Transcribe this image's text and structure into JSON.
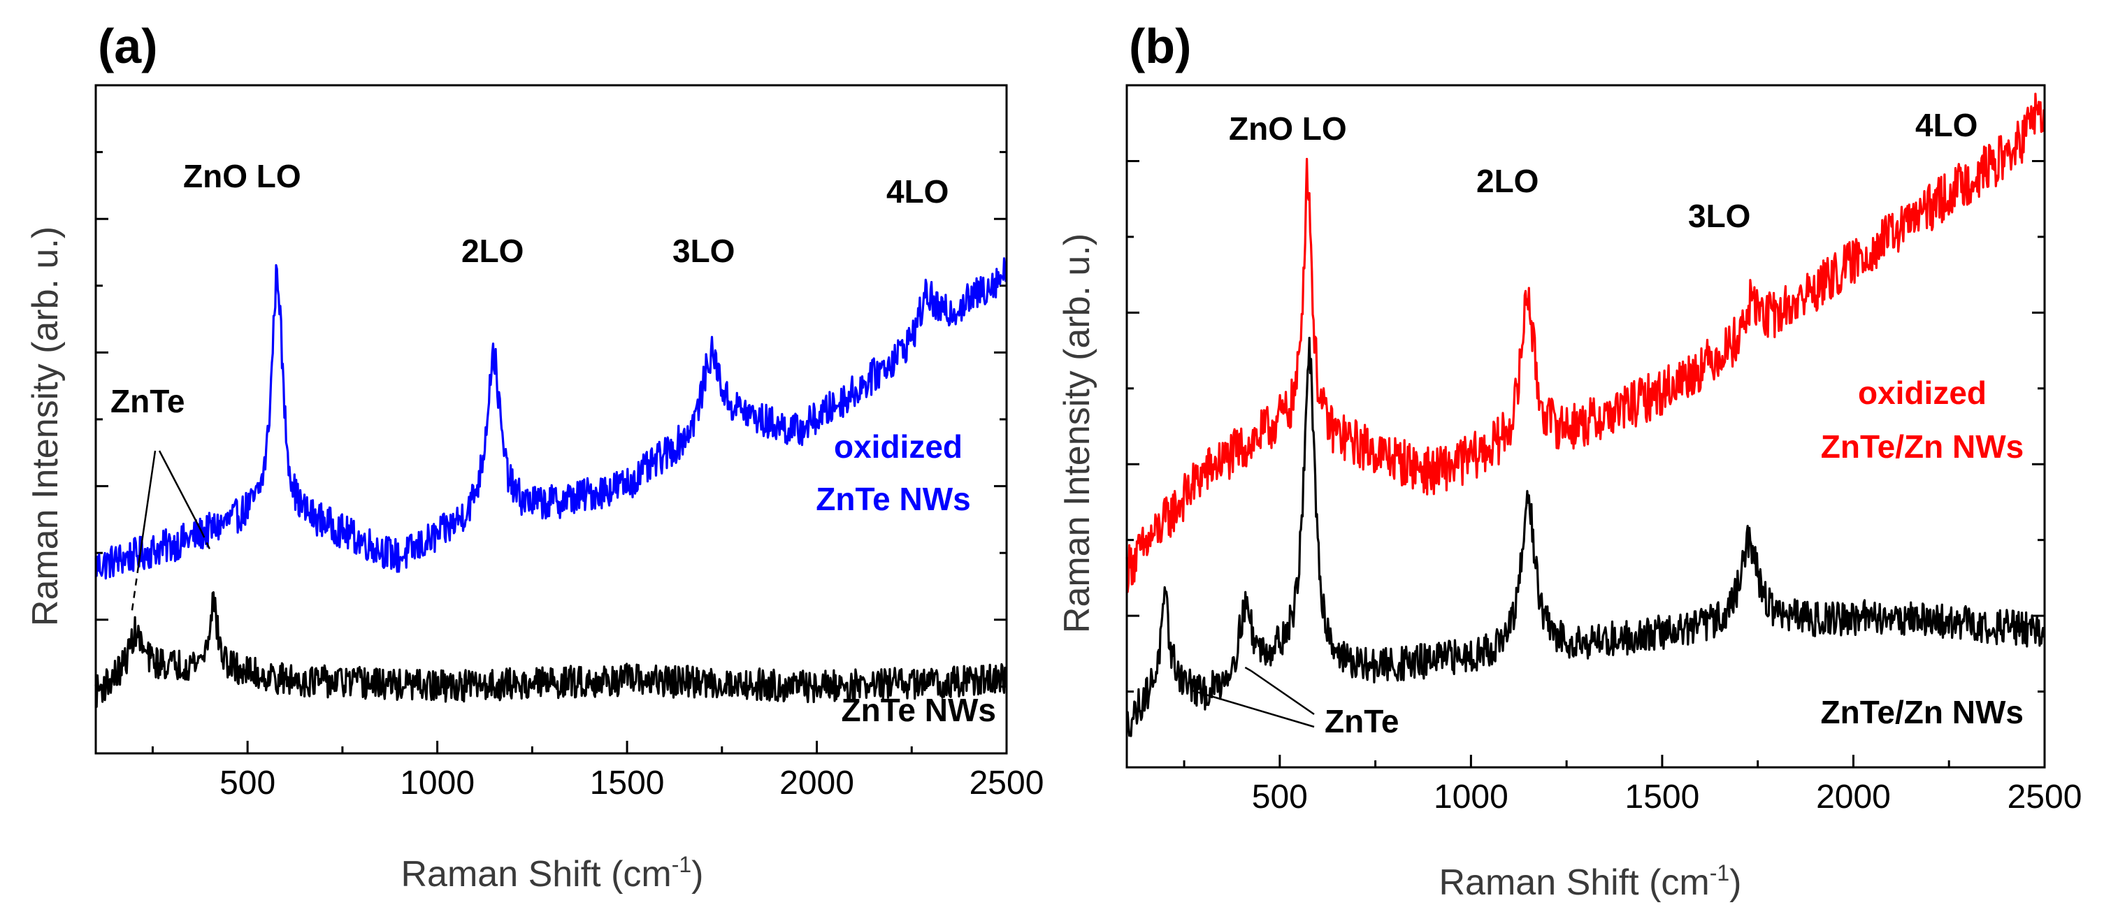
{
  "chart_data": [
    {
      "panel": "(a)",
      "type": "line",
      "xlabel": "Raman Shift (cm",
      "xlabel_sup": "-1",
      "xlabel_end": ")",
      "ylabel": "Raman Intensity (arb. u.)",
      "xlim": [
        100,
        2500
      ],
      "ylim": [
        0,
        1
      ],
      "xticks": [
        500,
        1000,
        1500,
        2000,
        2500
      ],
      "series": [
        {
          "name": "oxidized ZnTe NWs",
          "label_lines": [
            "oxidized",
            "ZnTe NWs"
          ],
          "color": "#0000ff",
          "baseline": [
            [
              100,
              0.28
            ],
            [
              300,
              0.31
            ],
            [
              500,
              0.35
            ],
            [
              700,
              0.34
            ],
            [
              900,
              0.29
            ],
            [
              1100,
              0.35
            ],
            [
              1300,
              0.37
            ],
            [
              1500,
              0.4
            ],
            [
              1600,
              0.44
            ],
            [
              1800,
              0.5
            ],
            [
              1950,
              0.48
            ],
            [
              2100,
              0.54
            ],
            [
              2300,
              0.63
            ],
            [
              2500,
              0.72
            ]
          ],
          "peaks": [
            {
              "x": 578,
              "height": 0.37,
              "width": 18
            },
            {
              "x": 1148,
              "height": 0.24,
              "width": 22
            },
            {
              "x": 1722,
              "height": 0.12,
              "width": 30
            },
            {
              "x": 2290,
              "height": 0.06,
              "width": 25
            }
          ],
          "noise": 0.026
        },
        {
          "name": "ZnTe NWs",
          "label_lines": [
            "ZnTe NWs"
          ],
          "color": "#000000",
          "baseline": [
            [
              100,
              0.09
            ],
            [
              200,
              0.13
            ],
            [
              400,
              0.13
            ],
            [
              600,
              0.11
            ],
            [
              1000,
              0.1
            ],
            [
              1500,
              0.11
            ],
            [
              2000,
              0.1
            ],
            [
              2500,
              0.11
            ]
          ],
          "peaks": [
            {
              "x": 205,
              "height": 0.05,
              "width": 20
            },
            {
              "x": 410,
              "height": 0.1,
              "width": 12
            }
          ],
          "noise": 0.024
        }
      ],
      "annotations": [
        {
          "text": "ZnO LO",
          "x": 450,
          "y": 0.9
        },
        {
          "text": "2LO",
          "x": 1150,
          "y": 0.78
        },
        {
          "text": "3LO",
          "x": 1722,
          "y": 0.76
        },
        {
          "text": "4LO",
          "x": 2295,
          "y": 0.87
        },
        {
          "text": "ZnTe",
          "x": 230,
          "y": 0.52
        }
      ]
    },
    {
      "panel": "(b)",
      "type": "line",
      "xlabel": "Raman Shift (cm",
      "xlabel_sup": "-1",
      "xlabel_end": ")",
      "ylabel": "Raman Intensity (arb. u.)",
      "xlim": [
        100,
        2500
      ],
      "ylim": [
        0,
        1
      ],
      "xticks": [
        500,
        1000,
        1500,
        2000,
        2500
      ],
      "series": [
        {
          "name": "oxidized ZnTe/Zn NWs",
          "label_lines": [
            "oxidized",
            "ZnTe/Zn NWs"
          ],
          "color": "#ff0000",
          "baseline": [
            [
              100,
              0.29
            ],
            [
              300,
              0.43
            ],
            [
              500,
              0.5
            ],
            [
              700,
              0.47
            ],
            [
              900,
              0.43
            ],
            [
              1100,
              0.47
            ],
            [
              1300,
              0.5
            ],
            [
              1500,
              0.55
            ],
            [
              1700,
              0.62
            ],
            [
              1900,
              0.7
            ],
            [
              2100,
              0.78
            ],
            [
              2300,
              0.86
            ],
            [
              2500,
              0.93
            ]
          ],
          "peaks": [
            {
              "x": 573,
              "height": 0.38,
              "width": 14
            },
            {
              "x": 1148,
              "height": 0.22,
              "width": 20
            },
            {
              "x": 1735,
              "height": 0.05,
              "width": 22
            },
            {
              "x": 2475,
              "height": 0.04,
              "width": 20
            }
          ],
          "noise": 0.035
        },
        {
          "name": "ZnTe/Zn NWs",
          "label_lines": [
            "ZnTe/Zn NWs"
          ],
          "color": "#000000",
          "baseline": [
            [
              100,
              0.06
            ],
            [
              200,
              0.14
            ],
            [
              300,
              0.1
            ],
            [
              500,
              0.16
            ],
            [
              700,
              0.14
            ],
            [
              1000,
              0.16
            ],
            [
              1300,
              0.18
            ],
            [
              1700,
              0.21
            ],
            [
              2100,
              0.22
            ],
            [
              2500,
              0.2
            ]
          ],
          "peaks": [
            {
              "x": 200,
              "height": 0.1,
              "width": 12
            },
            {
              "x": 410,
              "height": 0.1,
              "width": 20
            },
            {
              "x": 577,
              "height": 0.45,
              "width": 18
            },
            {
              "x": 1150,
              "height": 0.22,
              "width": 22
            },
            {
              "x": 1728,
              "height": 0.12,
              "width": 28
            }
          ],
          "noise": 0.026
        }
      ],
      "annotations": [
        {
          "text": "ZnO LO",
          "x": 565,
          "y": 0.94
        },
        {
          "text": "2LO",
          "x": 1148,
          "y": 0.85
        },
        {
          "text": "3LO",
          "x": 1720,
          "y": 0.78
        },
        {
          "text": "4LO",
          "x": 2370,
          "y": 0.95
        },
        {
          "text": "ZnTe",
          "x": 640,
          "y": 0.06
        }
      ]
    }
  ]
}
